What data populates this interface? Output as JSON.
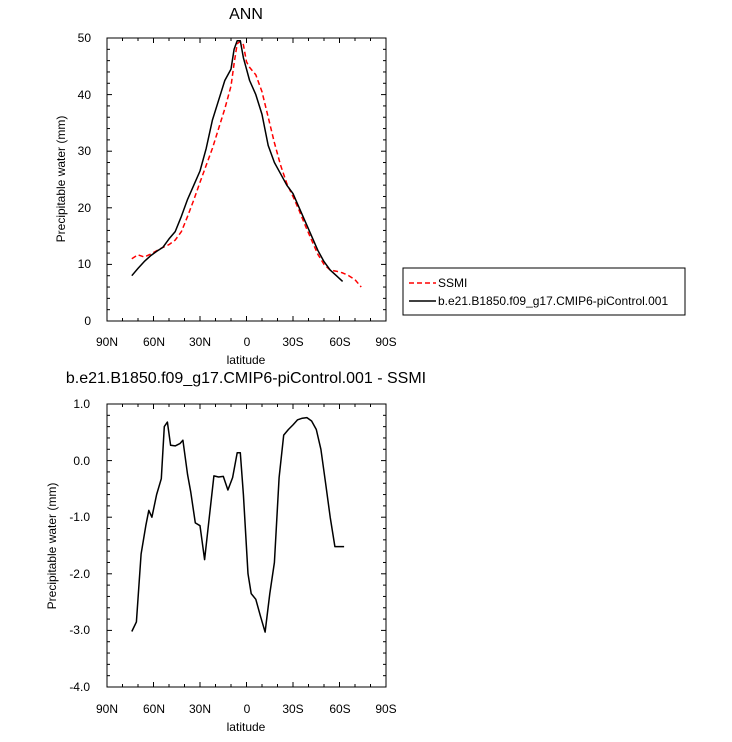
{
  "chart_data": [
    {
      "type": "line",
      "title": "ANN",
      "xlabel": "latitude",
      "ylabel": "Precipitable water (mm)",
      "xlim": [
        90,
        -90
      ],
      "ylim": [
        0,
        50
      ],
      "x_ticks": [
        90,
        60,
        30,
        0,
        -30,
        -60,
        -90
      ],
      "x_tick_labels": [
        "90N",
        "60N",
        "30N",
        "0",
        "30S",
        "60S",
        "90S"
      ],
      "y_ticks": [
        0,
        10,
        20,
        30,
        40,
        50
      ],
      "y_tick_labels": [
        "0",
        "10",
        "20",
        "30",
        "40",
        "50"
      ],
      "grid": false,
      "legend_position": "right",
      "series": [
        {
          "name": "SSMI",
          "color": "#ff0000",
          "dash": "dashed",
          "x": [
            74,
            70,
            66,
            62,
            58,
            54,
            50,
            46,
            42,
            38,
            34,
            30,
            26,
            22,
            18,
            14,
            10,
            8,
            6,
            4,
            2,
            0,
            -2,
            -6,
            -10,
            -14,
            -18,
            -22,
            -26,
            -30,
            -34,
            -38,
            -42,
            -46,
            -50,
            -54,
            -58,
            -62,
            -66,
            -70,
            -74
          ],
          "y": [
            11,
            11.7,
            11.3,
            11.8,
            12.4,
            13,
            13.5,
            14.3,
            15.8,
            18.5,
            21.4,
            24.5,
            27.5,
            30.5,
            34,
            37.5,
            41.5,
            45.5,
            49,
            49.4,
            48.8,
            45.8,
            44.8,
            43.5,
            40.5,
            36,
            31.5,
            27.5,
            24.3,
            22,
            19.5,
            16.8,
            14.3,
            11.8,
            10,
            9,
            8.8,
            8.5,
            8,
            7.3,
            6
          ]
        },
        {
          "name": "b.e21.B1850.f09_g17.CMIP6-piControl.001",
          "color": "#000000",
          "dash": "solid",
          "x": [
            74,
            70,
            66,
            62,
            58,
            54,
            50,
            46,
            42,
            38,
            34,
            30,
            26,
            22,
            18,
            14,
            10,
            8,
            6,
            4,
            2,
            0,
            -2,
            -6,
            -10,
            -14,
            -18,
            -22,
            -26,
            -30,
            -34,
            -38,
            -42,
            -46,
            -50,
            -54,
            -58,
            -62
          ],
          "y": [
            8,
            9.3,
            10.5,
            11.5,
            12.3,
            13,
            14.5,
            15.8,
            18.5,
            21.5,
            24,
            26.5,
            30.5,
            35.5,
            39,
            42.5,
            44.5,
            48,
            49.5,
            49.5,
            46.5,
            44.5,
            42.5,
            40,
            36.5,
            31,
            28,
            26,
            24,
            22.5,
            20,
            17.5,
            15,
            12.5,
            10.5,
            9,
            8,
            7
          ]
        }
      ]
    },
    {
      "type": "line",
      "title": "b.e21.B1850.f09_g17.CMIP6-piControl.001 - SSMI",
      "xlabel": "latitude",
      "ylabel": "Precipitable water (mm)",
      "xlim": [
        90,
        -90
      ],
      "ylim": [
        -4,
        1
      ],
      "x_ticks": [
        90,
        60,
        30,
        0,
        -30,
        -60,
        -90
      ],
      "x_tick_labels": [
        "90N",
        "60N",
        "30N",
        "0",
        "30S",
        "60S",
        "90S"
      ],
      "y_ticks": [
        1,
        0,
        -1,
        -2,
        -3,
        -4
      ],
      "y_tick_labels": [
        "1.0",
        "0.0",
        "-1.0",
        "-2.0",
        "-3.0",
        "-4.0"
      ],
      "grid": false,
      "series": [
        {
          "color": "#000000",
          "dash": "solid",
          "x": [
            74,
            71,
            68,
            65,
            63,
            61,
            58,
            55,
            53,
            51,
            49,
            46,
            43,
            41,
            38,
            36,
            33,
            30,
            27,
            24,
            21,
            18,
            15,
            12,
            9,
            6,
            4,
            2,
            -1,
            -3,
            -6,
            -9,
            -12,
            -15,
            -18,
            -21,
            -24,
            -27,
            -30,
            -33,
            -36,
            -39,
            -42,
            -45,
            -48,
            -51,
            -54,
            -57,
            -60,
            -63
          ],
          "y": [
            -3.02,
            -2.85,
            -1.65,
            -1.15,
            -0.88,
            -1.0,
            -0.6,
            -0.32,
            0.6,
            0.68,
            0.27,
            0.26,
            0.3,
            0.36,
            -0.25,
            -0.55,
            -1.1,
            -1.15,
            -1.75,
            -1.0,
            -0.27,
            -0.29,
            -0.28,
            -0.52,
            -0.3,
            0.14,
            0.14,
            -0.6,
            -2.0,
            -2.35,
            -2.45,
            -2.75,
            -3.03,
            -2.35,
            -1.8,
            -0.3,
            0.45,
            0.55,
            0.63,
            0.72,
            0.75,
            0.76,
            0.7,
            0.55,
            0.2,
            -0.4,
            -1.0,
            -1.52,
            -1.52,
            -1.52
          ]
        }
      ]
    }
  ]
}
